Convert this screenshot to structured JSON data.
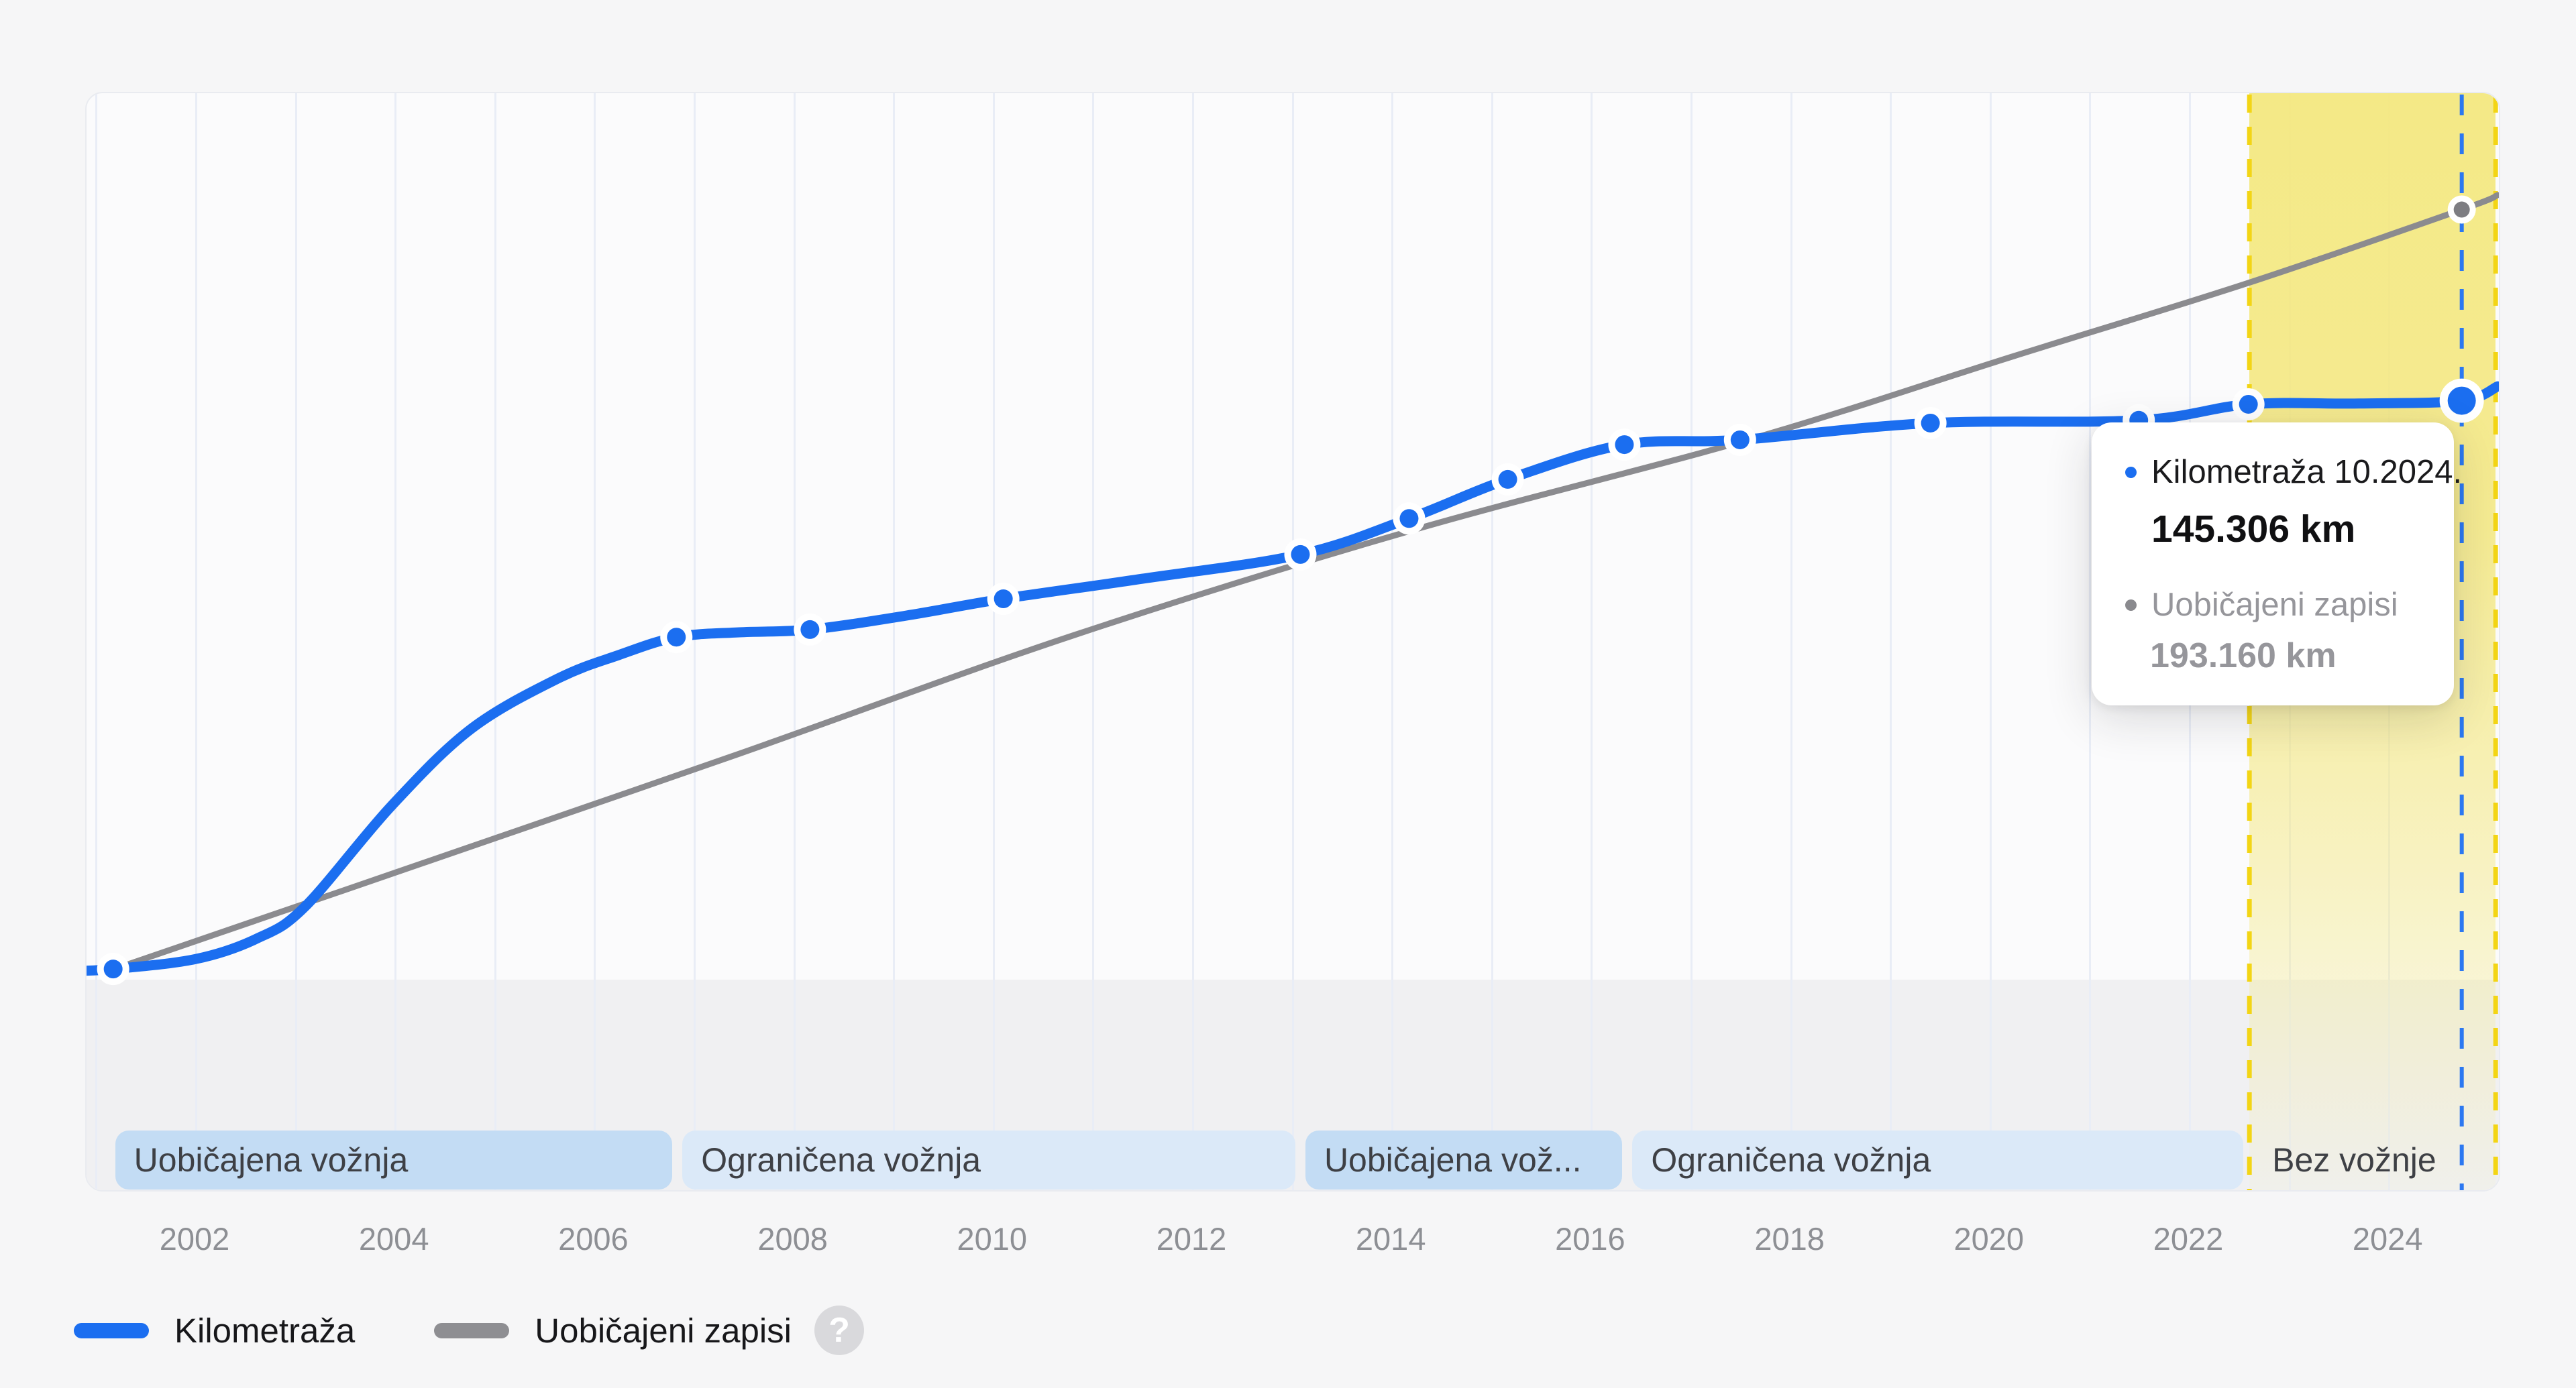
{
  "page": {
    "background": "#f6f6f7"
  },
  "chart_data": {
    "type": "line",
    "title": "",
    "xlabel": "",
    "ylabel": "",
    "x_axis": {
      "tick_labels": [
        "2002",
        "2004",
        "2006",
        "2008",
        "2010",
        "2012",
        "2014",
        "2016",
        "2018",
        "2020",
        "2022",
        "2024"
      ],
      "tick_years": [
        2002,
        2004,
        2006,
        2008,
        2010,
        2012,
        2014,
        2016,
        2018,
        2020,
        2022,
        2024
      ],
      "grid_years": [
        2001,
        2002,
        2003,
        2004,
        2005,
        2006,
        2007,
        2008,
        2009,
        2010,
        2011,
        2012,
        2013,
        2014,
        2015,
        2016,
        2017,
        2018,
        2019,
        2020,
        2021,
        2022,
        2023,
        2024
      ],
      "range_years": [
        2000.8,
        2025.1
      ]
    },
    "ylim_km": [
      0,
      226000
    ],
    "series": [
      {
        "name": "Kilometraža",
        "color": "#1b6ef0",
        "points": [
          [
            2000.79,
            2500
          ],
          [
            2001.17,
            3000
          ],
          [
            2002.0,
            5500
          ],
          [
            2002.61,
            10600
          ],
          [
            2003.09,
            18500
          ],
          [
            2003.96,
            43800
          ],
          [
            2004.76,
            63100
          ],
          [
            2005.63,
            75700
          ],
          [
            2006.24,
            81600
          ],
          [
            2006.82,
            86100
          ],
          [
            2007.45,
            87300
          ],
          [
            2008.16,
            88000
          ],
          [
            2009.13,
            91500
          ],
          [
            2010.1,
            95700
          ],
          [
            2011.49,
            100700
          ],
          [
            2013.08,
            106800
          ],
          [
            2014.17,
            115800
          ],
          [
            2015.16,
            125600
          ],
          [
            2016.33,
            134300
          ],
          [
            2017.49,
            135500
          ],
          [
            2019.4,
            139700
          ],
          [
            2021.49,
            140400
          ],
          [
            2022.59,
            144400
          ],
          [
            2023.7,
            144600
          ],
          [
            2024.73,
            145306
          ],
          [
            2025.09,
            148900
          ]
        ],
        "markers": [
          [
            2001.17,
            3000
          ],
          [
            2006.82,
            86100
          ],
          [
            2008.16,
            88000
          ],
          [
            2010.1,
            95700
          ],
          [
            2013.08,
            106800
          ],
          [
            2014.17,
            115800
          ],
          [
            2015.16,
            125600
          ],
          [
            2016.33,
            134300
          ],
          [
            2017.49,
            135500
          ],
          [
            2019.4,
            139700
          ],
          [
            2021.49,
            140400
          ],
          [
            2022.59,
            144400
          ]
        ],
        "current_point": {
          "year": 2024.73,
          "km": 145306
        }
      },
      {
        "name": "Uobičajeni zapisi",
        "color": "#8b8b8f",
        "points": [
          [
            2001.17,
            2900
          ],
          [
            2004.09,
            27900
          ],
          [
            2007.45,
            56900
          ],
          [
            2010.81,
            86600
          ],
          [
            2014.18,
            112700
          ],
          [
            2017.61,
            135800
          ],
          [
            2020.24,
            156500
          ],
          [
            2022.59,
            174800
          ],
          [
            2024.73,
            193160
          ],
          [
            2025.09,
            196800
          ]
        ],
        "end_point": {
          "year": 2024.73,
          "km": 193160
        }
      }
    ],
    "periods": [
      {
        "label": "Uobičajena vožnja",
        "start_year": 2001.17,
        "end_year": 2006.8,
        "shade": "dark"
      },
      {
        "label": "Ograničena vožnja",
        "start_year": 2006.86,
        "end_year": 2013.05,
        "shade": "light"
      },
      {
        "label": "Uobičajena vož...",
        "start_year": 2013.11,
        "end_year": 2016.33,
        "shade": "dark"
      },
      {
        "label": "Ograničena vožnja",
        "start_year": 2016.39,
        "end_year": 2022.56,
        "shade": "light"
      },
      {
        "label": "Bez vožnje",
        "start_year": 2022.62,
        "end_year": 2025.05,
        "shade": "none"
      }
    ],
    "no_drive_region": {
      "start_year": 2022.6,
      "end_year": 2025.07,
      "fill": "#f4e880",
      "border_color": "#f3d515"
    },
    "hover_year": 2024.73,
    "hover_line_color": "#2c78f1",
    "grid_on": true,
    "legend_position": "bottom-left"
  },
  "tooltip": {
    "row1_label": "Kilometraža 10.2024.",
    "row1_value": "145.306 km",
    "row2_label": "Uobičajeni zapisi",
    "row2_value": "193.160 km"
  },
  "legend": {
    "items": [
      {
        "label": "Kilometraža",
        "color": "#1b6ef0"
      },
      {
        "label": "Uobičajeni zapisi",
        "color": "#8e8e92"
      }
    ],
    "help_icon": "?"
  }
}
